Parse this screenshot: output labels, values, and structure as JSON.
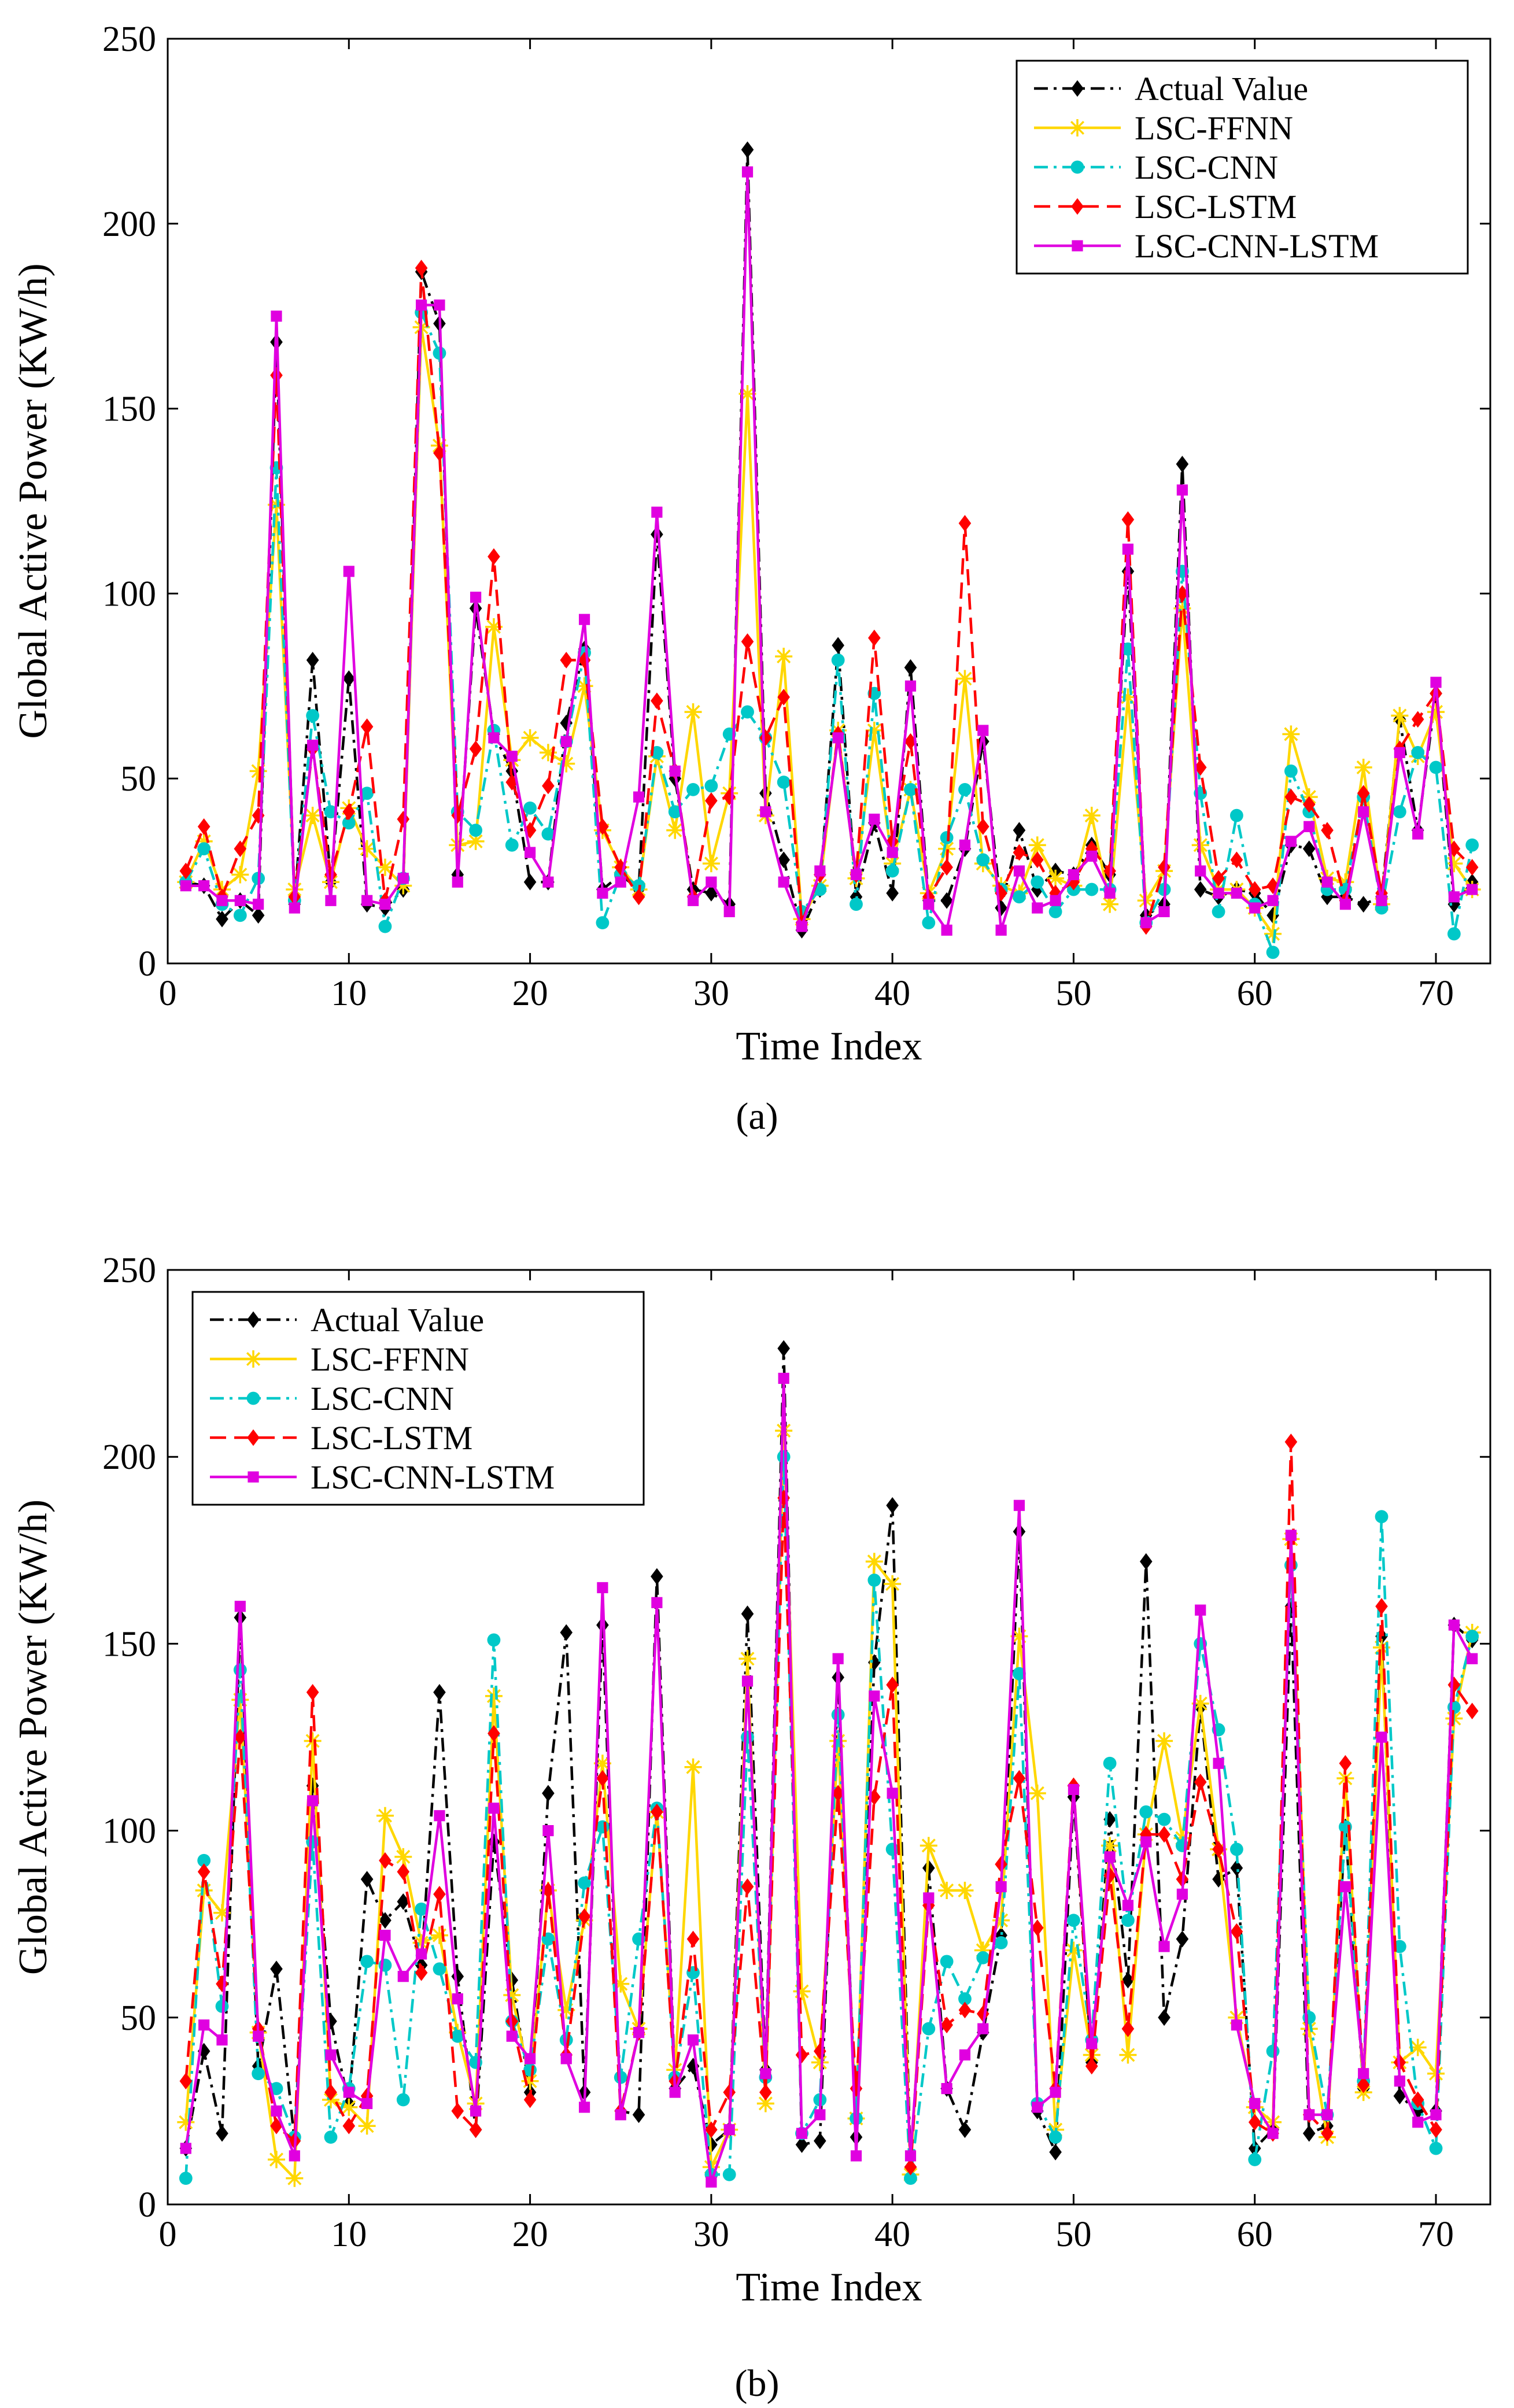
{
  "figure": {
    "panel_labels": [
      "(a)",
      "(b)"
    ]
  },
  "chart_data": [
    {
      "type": "line",
      "panel": "(a)",
      "xlabel": "Time Index",
      "ylabel": "Global Active Power (KW/h)",
      "xlim": [
        0,
        73
      ],
      "ylim": [
        0,
        250
      ],
      "xticks": [
        0,
        10,
        20,
        30,
        40,
        50,
        60,
        70
      ],
      "yticks": [
        0,
        50,
        100,
        150,
        200,
        250
      ],
      "grid": false,
      "legend_position": "top-right",
      "x": [
        1,
        2,
        3,
        4,
        5,
        6,
        7,
        8,
        9,
        10,
        11,
        12,
        13,
        14,
        15,
        16,
        17,
        18,
        19,
        20,
        21,
        22,
        23,
        24,
        25,
        26,
        27,
        28,
        29,
        30,
        31,
        32,
        33,
        34,
        35,
        36,
        37,
        38,
        39,
        40,
        41,
        42,
        43,
        44,
        45,
        46,
        47,
        48,
        49,
        50,
        51,
        52,
        53,
        54,
        55,
        56,
        57,
        58,
        59,
        60,
        61,
        62,
        63,
        64,
        65,
        66,
        67,
        68,
        69,
        70,
        71,
        72
      ],
      "series": [
        {
          "name": "Actual Value",
          "color": "#000000",
          "dash": "dashdot",
          "marker": "diamond",
          "values": [
            22,
            21,
            12,
            17,
            13,
            168,
            16,
            82,
            22,
            77,
            16,
            15,
            20,
            187,
            173,
            24,
            96,
            62,
            52,
            22,
            22,
            65,
            85,
            20,
            24,
            20,
            116,
            50,
            20,
            19,
            16,
            220,
            46,
            28,
            9,
            20,
            86,
            18,
            38,
            19,
            80,
            17,
            17,
            31,
            60,
            15,
            36,
            20,
            25,
            24,
            32,
            24,
            106,
            13,
            16,
            135,
            20,
            18,
            20,
            19,
            13,
            32,
            31,
            18,
            18,
            16,
            18,
            66,
            36,
            73,
            16,
            22
          ]
        },
        {
          "name": "LSC-FFNN",
          "color": "#ffd700",
          "dash": "solid",
          "marker": "star",
          "values": [
            22,
            33,
            20,
            24,
            52,
            124,
            20,
            40,
            22,
            42,
            31,
            26,
            21,
            172,
            140,
            32,
            33,
            91,
            55,
            61,
            57,
            54,
            75,
            36,
            26,
            20,
            56,
            36,
            68,
            27,
            46,
            154,
            40,
            83,
            12,
            21,
            63,
            23,
            63,
            27,
            47,
            19,
            31,
            77,
            27,
            21,
            19,
            32,
            23,
            21,
            40,
            16,
            72,
            17,
            25,
            96,
            32,
            20,
            20,
            15,
            8,
            62,
            45,
            23,
            22,
            53,
            16,
            67,
            56,
            68,
            27,
            20
          ]
        },
        {
          "name": "LSC-CNN",
          "color": "#00c8c8",
          "dash": "dashdot",
          "marker": "circle",
          "values": [
            22,
            31,
            16,
            13,
            23,
            134,
            17,
            67,
            41,
            38,
            46,
            10,
            23,
            176,
            165,
            41,
            36,
            63,
            32,
            42,
            35,
            60,
            84,
            11,
            24,
            21,
            57,
            41,
            47,
            48,
            62,
            68,
            61,
            49,
            14,
            20,
            82,
            16,
            73,
            25,
            47,
            11,
            34,
            47,
            28,
            20,
            18,
            22,
            14,
            20,
            20,
            20,
            85,
            11,
            20,
            106,
            46,
            14,
            40,
            16,
            3,
            52,
            41,
            20,
            20,
            45,
            15,
            41,
            57,
            53,
            8,
            32
          ]
        },
        {
          "name": "LSC-LSTM",
          "color": "#ff0000",
          "dash": "dashed",
          "marker": "diamond",
          "values": [
            25,
            37,
            18,
            31,
            40,
            159,
            18,
            58,
            24,
            41,
            64,
            17,
            39,
            188,
            138,
            40,
            58,
            110,
            49,
            36,
            48,
            82,
            82,
            37,
            26,
            18,
            71,
            52,
            18,
            44,
            45,
            87,
            61,
            72,
            11,
            24,
            62,
            24,
            88,
            33,
            60,
            18,
            26,
            119,
            37,
            19,
            30,
            28,
            19,
            22,
            31,
            25,
            120,
            10,
            26,
            100,
            53,
            23,
            28,
            20,
            21,
            45,
            43,
            36,
            17,
            46,
            19,
            58,
            66,
            73,
            31,
            26
          ]
        },
        {
          "name": "LSC-CNN-LSTM",
          "color": "#e000e0",
          "dash": "solid",
          "marker": "square",
          "values": [
            21,
            21,
            17,
            17,
            16,
            175,
            15,
            59,
            17,
            106,
            17,
            16,
            23,
            178,
            178,
            22,
            99,
            61,
            56,
            30,
            22,
            60,
            93,
            19,
            22,
            45,
            122,
            52,
            17,
            22,
            14,
            214,
            41,
            22,
            10,
            25,
            61,
            24,
            39,
            30,
            75,
            16,
            9,
            32,
            63,
            9,
            25,
            15,
            17,
            24,
            29,
            19,
            112,
            11,
            14,
            128,
            25,
            19,
            19,
            15,
            17,
            33,
            37,
            22,
            16,
            41,
            17,
            57,
            35,
            76,
            18,
            20
          ]
        }
      ]
    },
    {
      "type": "line",
      "panel": "(b)",
      "xlabel": "Time Index",
      "ylabel": "Global Active Power (KW/h)",
      "xlim": [
        0,
        73
      ],
      "ylim": [
        0,
        250
      ],
      "xticks": [
        0,
        10,
        20,
        30,
        40,
        50,
        60,
        70
      ],
      "yticks": [
        0,
        50,
        100,
        150,
        200,
        250
      ],
      "grid": false,
      "legend_position": "top-left",
      "x": [
        1,
        2,
        3,
        4,
        5,
        6,
        7,
        8,
        9,
        10,
        11,
        12,
        13,
        14,
        15,
        16,
        17,
        18,
        19,
        20,
        21,
        22,
        23,
        24,
        25,
        26,
        27,
        28,
        29,
        30,
        31,
        32,
        33,
        34,
        35,
        36,
        37,
        38,
        39,
        40,
        41,
        42,
        43,
        44,
        45,
        46,
        47,
        48,
        49,
        50,
        51,
        52,
        53,
        54,
        55,
        56,
        57,
        58,
        59,
        60,
        61,
        62,
        63,
        64,
        65,
        66,
        67,
        68,
        69,
        70,
        71,
        72
      ],
      "series": [
        {
          "name": "Actual Value",
          "color": "#000000",
          "dash": "dashdot",
          "marker": "diamond",
          "values": [
            15,
            41,
            19,
            157,
            37,
            63,
            17,
            112,
            49,
            27,
            87,
            76,
            81,
            64,
            137,
            61,
            20,
            97,
            60,
            30,
            110,
            153,
            30,
            155,
            25,
            24,
            168,
            31,
            37,
            16,
            20,
            158,
            36,
            229,
            16,
            17,
            141,
            18,
            145,
            187,
            10,
            90,
            31,
            20,
            46,
            72,
            180,
            25,
            14,
            109,
            38,
            103,
            60,
            172,
            50,
            71,
            133,
            87,
            90,
            15,
            20,
            160,
            19,
            21,
            101,
            31,
            152,
            29,
            25,
            25,
            155,
            151
          ]
        },
        {
          "name": "LSC-FFNN",
          "color": "#ffd700",
          "dash": "solid",
          "marker": "star",
          "values": [
            22,
            84,
            78,
            135,
            46,
            12,
            7,
            124,
            28,
            26,
            21,
            104,
            93,
            70,
            72,
            46,
            27,
            136,
            56,
            33,
            84,
            52,
            76,
            118,
            59,
            47,
            105,
            36,
            117,
            10,
            20,
            146,
            27,
            207,
            57,
            38,
            124,
            23,
            172,
            166,
            8,
            96,
            84,
            84,
            68,
            76,
            152,
            110,
            20,
            68,
            40,
            96,
            40,
            99,
            124,
            98,
            134,
            95,
            50,
            26,
            22,
            178,
            47,
            18,
            114,
            30,
            149,
            38,
            42,
            35,
            130,
            153
          ]
        },
        {
          "name": "LSC-CNN",
          "color": "#00c8c8",
          "dash": "dashdot",
          "marker": "circle",
          "values": [
            7,
            92,
            53,
            143,
            35,
            31,
            18,
            97,
            18,
            31,
            65,
            64,
            28,
            79,
            63,
            45,
            38,
            151,
            49,
            36,
            71,
            44,
            86,
            101,
            34,
            71,
            106,
            34,
            62,
            8,
            8,
            125,
            34,
            200,
            19,
            28,
            131,
            23,
            167,
            95,
            7,
            47,
            65,
            55,
            66,
            70,
            142,
            27,
            18,
            76,
            44,
            118,
            76,
            105,
            103,
            96,
            150,
            127,
            95,
            12,
            41,
            171,
            50,
            24,
            101,
            33,
            184,
            69,
            27,
            15,
            133,
            152
          ]
        },
        {
          "name": "LSC-LSTM",
          "color": "#ff0000",
          "dash": "dashed",
          "marker": "diamond",
          "values": [
            33,
            89,
            59,
            125,
            47,
            21,
            17,
            137,
            30,
            21,
            29,
            92,
            89,
            62,
            83,
            25,
            20,
            126,
            49,
            28,
            84,
            40,
            77,
            114,
            25,
            46,
            105,
            33,
            71,
            20,
            30,
            85,
            30,
            189,
            40,
            41,
            110,
            31,
            109,
            139,
            10,
            80,
            48,
            52,
            51,
            91,
            114,
            74,
            31,
            112,
            37,
            88,
            47,
            99,
            99,
            87,
            113,
            95,
            73,
            22,
            19,
            204,
            24,
            19,
            118,
            32,
            160,
            38,
            28,
            20,
            139,
            132
          ]
        },
        {
          "name": "LSC-CNN-LSTM",
          "color": "#e000e0",
          "dash": "solid",
          "marker": "square",
          "values": [
            15,
            48,
            44,
            160,
            45,
            25,
            13,
            108,
            40,
            30,
            27,
            72,
            61,
            67,
            104,
            55,
            25,
            106,
            45,
            39,
            100,
            39,
            26,
            165,
            24,
            46,
            161,
            30,
            44,
            6,
            20,
            140,
            35,
            221,
            19,
            24,
            146,
            13,
            136,
            110,
            13,
            82,
            31,
            40,
            47,
            85,
            187,
            26,
            30,
            111,
            43,
            93,
            80,
            97,
            69,
            83,
            159,
            118,
            48,
            27,
            19,
            179,
            24,
            24,
            85,
            35,
            125,
            33,
            22,
            24,
            155,
            146
          ]
        }
      ]
    }
  ]
}
